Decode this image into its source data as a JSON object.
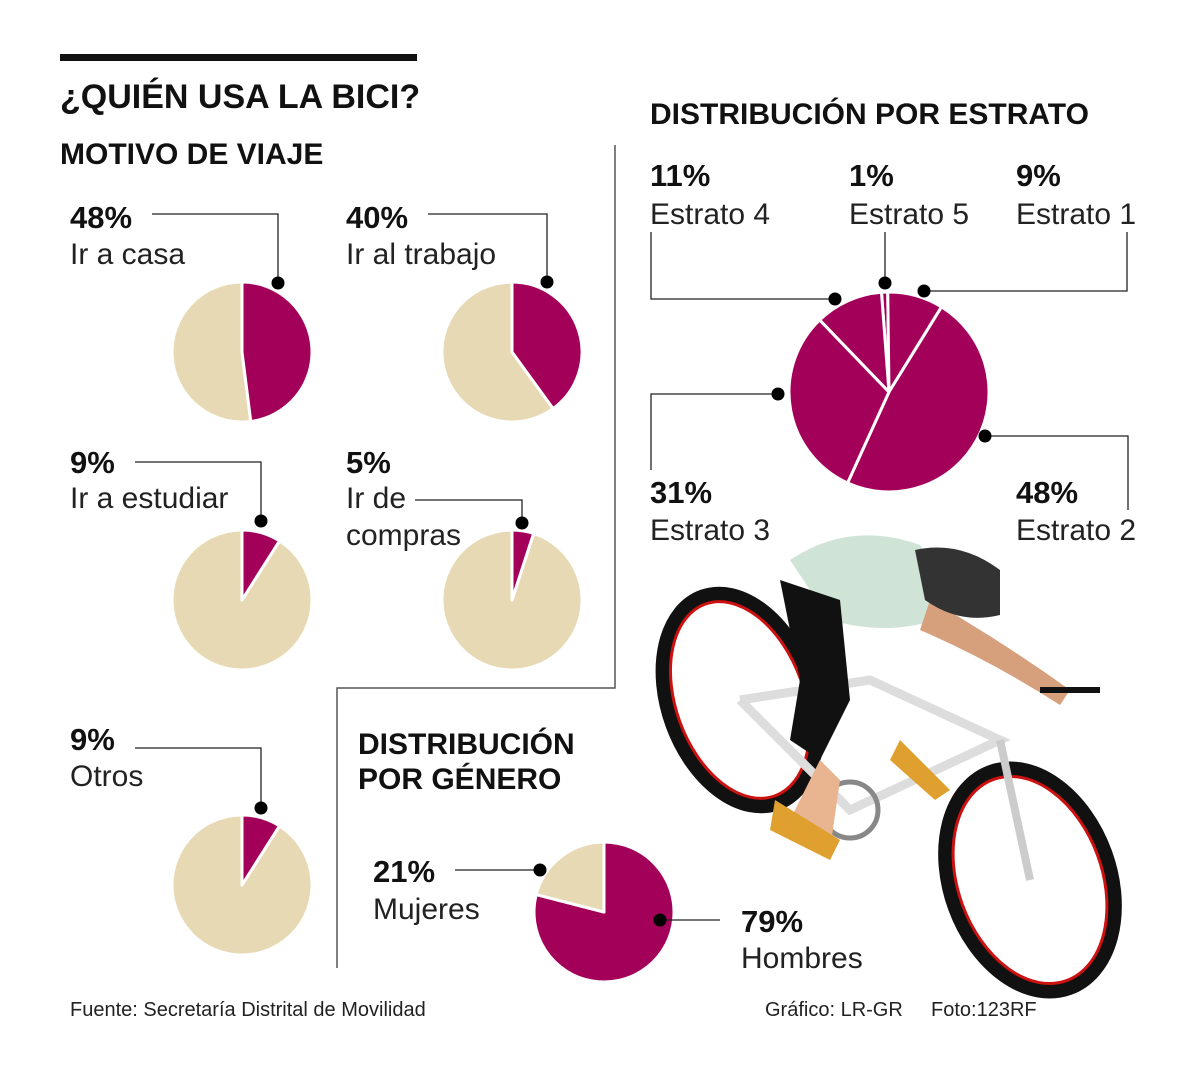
{
  "title": "¿QUIÉN USA LA BICI?",
  "colors": {
    "primary": "#a3005a",
    "secondary": "#e6d9b3"
  },
  "chart_data": [
    {
      "type": "pie",
      "title": "MOTIVO DE VIAJE",
      "small_multiples": [
        {
          "label": "Ir a casa",
          "pct_label": "48%",
          "value": 48
        },
        {
          "label": "Ir al trabajo",
          "pct_label": "40%",
          "value": 40
        },
        {
          "label": "Ir a estudiar",
          "pct_label": "9%",
          "value": 9
        },
        {
          "label": "Ir de compras",
          "label_lines": [
            "Ir de",
            "compras"
          ],
          "pct_label": "5%",
          "value": 5
        },
        {
          "label": "Otros",
          "pct_label": "9%",
          "value": 9
        }
      ]
    },
    {
      "type": "pie",
      "title": "DISTRIBUCIÓN POR ESTRATO",
      "slices": [
        {
          "label": "Estrato 5",
          "pct_label": "1%",
          "value": 1
        },
        {
          "label": "Estrato 1",
          "pct_label": "9%",
          "value": 9
        },
        {
          "label": "Estrato 2",
          "pct_label": "48%",
          "value": 48
        },
        {
          "label": "Estrato 3",
          "pct_label": "31%",
          "value": 31
        },
        {
          "label": "Estrato 4",
          "pct_label": "11%",
          "value": 11
        }
      ]
    },
    {
      "type": "pie",
      "title_lines": [
        "DISTRIBUCIÓN",
        "POR GÉNERO"
      ],
      "slices": [
        {
          "label": "Hombres",
          "pct_label": "79%",
          "value": 79
        },
        {
          "label": "Mujeres",
          "pct_label": "21%",
          "value": 21
        }
      ]
    }
  ],
  "footer": {
    "source": "Fuente: Secretaría Distrital de Movilidad",
    "graphic": "Gráfico: LR-GR",
    "photo": "Foto:123RF"
  }
}
